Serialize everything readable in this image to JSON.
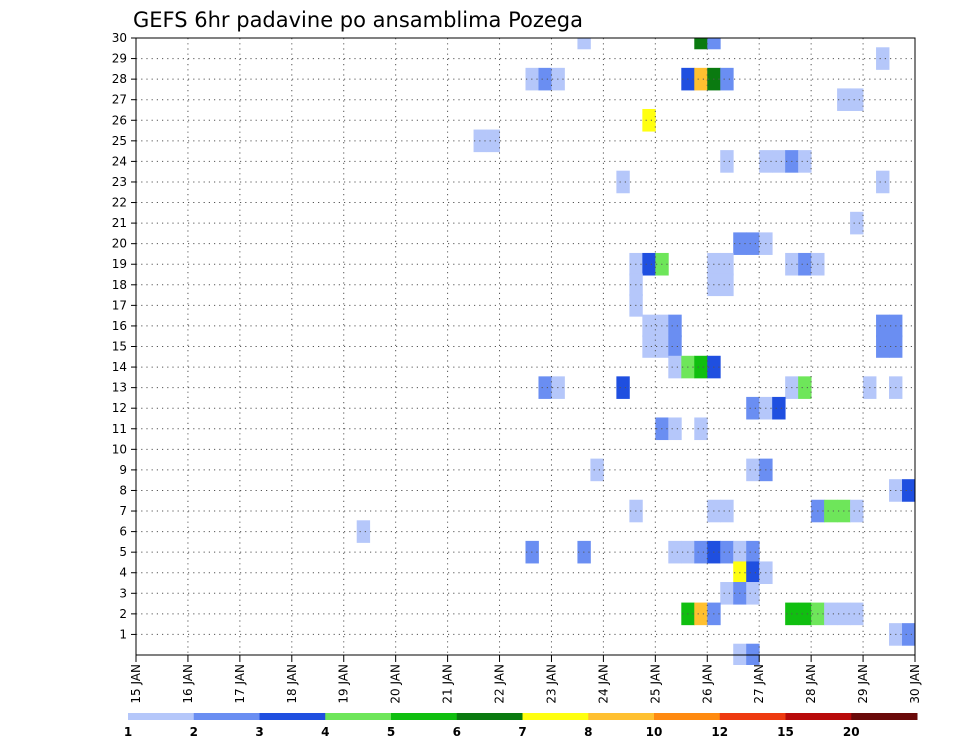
{
  "chart_data": {
    "type": "heatmap",
    "title": "GEFS 6hr padavine po ansamblima Pozega",
    "xlabel": "",
    "ylabel": "",
    "x_tick_labels": [
      "15 JAN",
      "16 JAN",
      "17 JAN",
      "18 JAN",
      "19 JAN",
      "20 JAN",
      "21 JAN",
      "22 JAN",
      "23 JAN",
      "24 JAN",
      "25 JAN",
      "26 JAN",
      "27 JAN",
      "28 JAN",
      "29 JAN",
      "30 JAN"
    ],
    "xlim": [
      0,
      15
    ],
    "ylim": [
      0,
      30
    ],
    "y_ticks": [
      1,
      2,
      3,
      4,
      5,
      6,
      7,
      8,
      9,
      10,
      11,
      12,
      13,
      14,
      15,
      16,
      17,
      18,
      19,
      20,
      21,
      22,
      23,
      24,
      25,
      26,
      27,
      28,
      29,
      30
    ],
    "grid": true,
    "colorbar": {
      "labels": [
        "1",
        "2",
        "3",
        "4",
        "5",
        "6",
        "7",
        "8",
        "10",
        "12",
        "15",
        "20"
      ],
      "colors": [
        "#b5c7fa",
        "#6a8ef2",
        "#1f4fe0",
        "#6ee65a",
        "#10bf10",
        "#0a7a10",
        "#ffff10",
        "#ffc030",
        "#ff8a10",
        "#ee3a10",
        "#b80a0a",
        "#6a0a0a"
      ]
    },
    "cells": [
      {
        "member": 30,
        "day": 8.5,
        "value": 1
      },
      {
        "member": 30,
        "day": 10.75,
        "value": 6
      },
      {
        "member": 30,
        "day": 11,
        "value": 2
      },
      {
        "member": 29,
        "day": 14.25,
        "value": 1
      },
      {
        "member": 28,
        "day": 7.5,
        "value": 1
      },
      {
        "member": 28,
        "day": 7.75,
        "value": 2
      },
      {
        "member": 28,
        "day": 8,
        "value": 1
      },
      {
        "member": 28,
        "day": 10.5,
        "value": 3
      },
      {
        "member": 28,
        "day": 10.75,
        "value": 8
      },
      {
        "member": 28,
        "day": 11,
        "value": 6
      },
      {
        "member": 28,
        "day": 11.25,
        "value": 2
      },
      {
        "member": 27,
        "day": 13.5,
        "value": 1
      },
      {
        "member": 27,
        "day": 13.75,
        "value": 1
      },
      {
        "member": 26,
        "day": 9.75,
        "value": 7
      },
      {
        "member": 25,
        "day": 6.5,
        "value": 1
      },
      {
        "member": 25,
        "day": 6.75,
        "value": 1
      },
      {
        "member": 24,
        "day": 11.25,
        "value": 1
      },
      {
        "member": 24,
        "day": 12,
        "value": 1
      },
      {
        "member": 24,
        "day": 12.25,
        "value": 1
      },
      {
        "member": 24,
        "day": 12.5,
        "value": 2
      },
      {
        "member": 24,
        "day": 12.75,
        "value": 1
      },
      {
        "member": 23,
        "day": 9.25,
        "value": 1
      },
      {
        "member": 23,
        "day": 14.25,
        "value": 1
      },
      {
        "member": 21,
        "day": 13.75,
        "value": 1
      },
      {
        "member": 20,
        "day": 11.5,
        "value": 2
      },
      {
        "member": 20,
        "day": 11.75,
        "value": 2
      },
      {
        "member": 20,
        "day": 12,
        "value": 1
      },
      {
        "member": 19,
        "day": 9.5,
        "value": 1
      },
      {
        "member": 19,
        "day": 9.75,
        "value": 3
      },
      {
        "member": 19,
        "day": 10,
        "value": 4
      },
      {
        "member": 19,
        "day": 11,
        "value": 1
      },
      {
        "member": 19,
        "day": 11.25,
        "value": 1
      },
      {
        "member": 19,
        "day": 12.5,
        "value": 1
      },
      {
        "member": 19,
        "day": 12.75,
        "value": 2
      },
      {
        "member": 19,
        "day": 13,
        "value": 1
      },
      {
        "member": 18,
        "day": 9.5,
        "value": 1
      },
      {
        "member": 18,
        "day": 11,
        "value": 1
      },
      {
        "member": 18,
        "day": 11.25,
        "value": 1
      },
      {
        "member": 17,
        "day": 9.5,
        "value": 1
      },
      {
        "member": 16,
        "day": 9.75,
        "value": 1
      },
      {
        "member": 16,
        "day": 10,
        "value": 1
      },
      {
        "member": 16,
        "day": 10.25,
        "value": 2
      },
      {
        "member": 16,
        "day": 14.25,
        "value": 2
      },
      {
        "member": 16,
        "day": 14.5,
        "value": 2
      },
      {
        "member": 15,
        "day": 9.75,
        "value": 1
      },
      {
        "member": 15,
        "day": 10,
        "value": 1
      },
      {
        "member": 15,
        "day": 10.25,
        "value": 2
      },
      {
        "member": 15,
        "day": 14.25,
        "value": 2
      },
      {
        "member": 15,
        "day": 14.5,
        "value": 2
      },
      {
        "member": 14,
        "day": 10.25,
        "value": 1
      },
      {
        "member": 14,
        "day": 10.5,
        "value": 4
      },
      {
        "member": 14,
        "day": 10.75,
        "value": 5
      },
      {
        "member": 14,
        "day": 11,
        "value": 3
      },
      {
        "member": 13,
        "day": 7.75,
        "value": 2
      },
      {
        "member": 13,
        "day": 8,
        "value": 1
      },
      {
        "member": 13,
        "day": 9.25,
        "value": 3
      },
      {
        "member": 13,
        "day": 12.5,
        "value": 1
      },
      {
        "member": 13,
        "day": 12.75,
        "value": 4
      },
      {
        "member": 13,
        "day": 14,
        "value": 1
      },
      {
        "member": 13,
        "day": 14.5,
        "value": 1
      },
      {
        "member": 12,
        "day": 11.75,
        "value": 2
      },
      {
        "member": 12,
        "day": 12,
        "value": 1
      },
      {
        "member": 12,
        "day": 12.25,
        "value": 3
      },
      {
        "member": 11,
        "day": 10,
        "value": 2
      },
      {
        "member": 11,
        "day": 10.25,
        "value": 1
      },
      {
        "member": 11,
        "day": 10.75,
        "value": 1
      },
      {
        "member": 9,
        "day": 8.75,
        "value": 1
      },
      {
        "member": 9,
        "day": 11.75,
        "value": 1
      },
      {
        "member": 9,
        "day": 12,
        "value": 2
      },
      {
        "member": 8,
        "day": 14.5,
        "value": 1
      },
      {
        "member": 8,
        "day": 14.75,
        "value": 3
      },
      {
        "member": 7,
        "day": 9.5,
        "value": 1
      },
      {
        "member": 7,
        "day": 11,
        "value": 1
      },
      {
        "member": 7,
        "day": 11.25,
        "value": 1
      },
      {
        "member": 7,
        "day": 13,
        "value": 2
      },
      {
        "member": 7,
        "day": 13.25,
        "value": 4
      },
      {
        "member": 7,
        "day": 13.5,
        "value": 4
      },
      {
        "member": 7,
        "day": 13.75,
        "value": 1
      },
      {
        "member": 6,
        "day": 4.25,
        "value": 1
      },
      {
        "member": 5,
        "day": 7.5,
        "value": 2
      },
      {
        "member": 5,
        "day": 8.5,
        "value": 2
      },
      {
        "member": 5,
        "day": 10.25,
        "value": 1
      },
      {
        "member": 5,
        "day": 10.5,
        "value": 1
      },
      {
        "member": 5,
        "day": 10.75,
        "value": 2
      },
      {
        "member": 5,
        "day": 11,
        "value": 3
      },
      {
        "member": 5,
        "day": 11.25,
        "value": 2
      },
      {
        "member": 5,
        "day": 11.5,
        "value": 1
      },
      {
        "member": 5,
        "day": 11.75,
        "value": 2
      },
      {
        "member": 4,
        "day": 11.5,
        "value": 7
      },
      {
        "member": 4,
        "day": 11.75,
        "value": 3
      },
      {
        "member": 4,
        "day": 12,
        "value": 1
      },
      {
        "member": 3,
        "day": 11.25,
        "value": 1
      },
      {
        "member": 3,
        "day": 11.5,
        "value": 2
      },
      {
        "member": 3,
        "day": 11.75,
        "value": 1
      },
      {
        "member": 2,
        "day": 10.5,
        "value": 5
      },
      {
        "member": 2,
        "day": 10.75,
        "value": 8
      },
      {
        "member": 2,
        "day": 11,
        "value": 2
      },
      {
        "member": 2,
        "day": 12.5,
        "value": 5
      },
      {
        "member": 2,
        "day": 12.75,
        "value": 5
      },
      {
        "member": 2,
        "day": 13,
        "value": 4
      },
      {
        "member": 2,
        "day": 13.25,
        "value": 1
      },
      {
        "member": 2,
        "day": 13.5,
        "value": 1
      },
      {
        "member": 2,
        "day": 13.75,
        "value": 1
      },
      {
        "member": 1,
        "day": 14.5,
        "value": 1
      },
      {
        "member": 1,
        "day": 14.75,
        "value": 2
      },
      {
        "member": 0,
        "day": 11.5,
        "value": 1
      },
      {
        "member": 0,
        "day": 11.75,
        "value": 2
      }
    ]
  }
}
